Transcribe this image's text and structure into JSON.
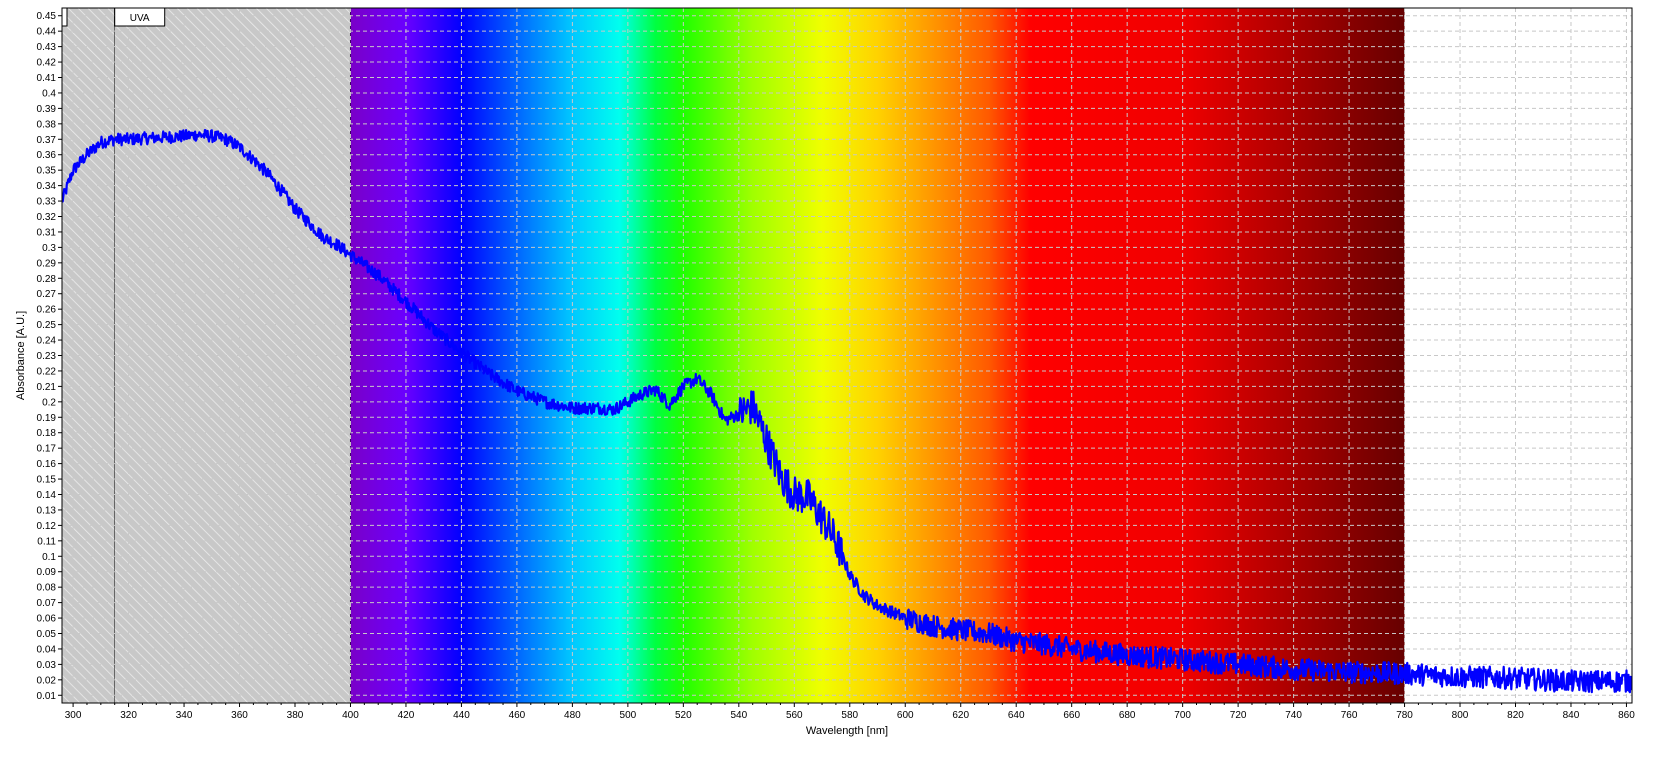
{
  "chart_data": {
    "type": "line",
    "xlabel": "Wavelength [nm]",
    "ylabel": "Absorbance [A.U.]",
    "xlim": [
      296,
      862
    ],
    "ylim": [
      0.005,
      0.455
    ],
    "grid": true,
    "x_ticks": [
      300,
      320,
      340,
      360,
      380,
      400,
      420,
      440,
      460,
      480,
      500,
      520,
      540,
      560,
      580,
      600,
      620,
      640,
      660,
      680,
      700,
      720,
      740,
      760,
      780,
      800,
      820,
      840,
      860
    ],
    "y_ticks": [
      0.01,
      0.02,
      0.03,
      0.04,
      0.05,
      0.06,
      0.07,
      0.08,
      0.09,
      0.1,
      0.11,
      0.12,
      0.13,
      0.14,
      0.15,
      0.16,
      0.17,
      0.18,
      0.19,
      0.2,
      0.21,
      0.22,
      0.23,
      0.24,
      0.25,
      0.26,
      0.27,
      0.28,
      0.29,
      0.3,
      0.31,
      0.32,
      0.33,
      0.34,
      0.35,
      0.36,
      0.37,
      0.38,
      0.39,
      0.4,
      0.41,
      0.42,
      0.43,
      0.44,
      0.45
    ],
    "regions": [
      {
        "name": "",
        "range": [
          296,
          315
        ],
        "fill": "hatched-gray"
      },
      {
        "name": "UVA",
        "range": [
          315,
          400
        ],
        "fill": "hatched-gray"
      },
      {
        "name": "",
        "range": [
          400,
          780
        ],
        "fill": "visible-spectrum"
      }
    ],
    "spectrum_stops": [
      {
        "nm": 400,
        "color": "#7a00c8"
      },
      {
        "nm": 420,
        "color": "#6a00ff"
      },
      {
        "nm": 440,
        "color": "#0000ff"
      },
      {
        "nm": 460,
        "color": "#0066ff"
      },
      {
        "nm": 480,
        "color": "#00c8ff"
      },
      {
        "nm": 497,
        "color": "#00ffee"
      },
      {
        "nm": 510,
        "color": "#00ff40"
      },
      {
        "nm": 520,
        "color": "#20ff00"
      },
      {
        "nm": 545,
        "color": "#a0ff00"
      },
      {
        "nm": 570,
        "color": "#f0ff00"
      },
      {
        "nm": 590,
        "color": "#ffd200"
      },
      {
        "nm": 610,
        "color": "#ff9600"
      },
      {
        "nm": 630,
        "color": "#ff5a00"
      },
      {
        "nm": 645,
        "color": "#ff0000"
      },
      {
        "nm": 700,
        "color": "#f00000"
      },
      {
        "nm": 740,
        "color": "#aa0000"
      },
      {
        "nm": 780,
        "color": "#660000"
      }
    ],
    "series": [
      {
        "name": "",
        "color": "#0000ff",
        "x": [
          296,
          300,
          305,
          310,
          315,
          320,
          330,
          340,
          345,
          350,
          355,
          360,
          365,
          370,
          375,
          380,
          385,
          390,
          395,
          400,
          410,
          420,
          430,
          440,
          450,
          460,
          470,
          480,
          490,
          495,
          500,
          505,
          510,
          515,
          520,
          525,
          530,
          535,
          540,
          545,
          550,
          555,
          560,
          565,
          570,
          575,
          580,
          585,
          590,
          600,
          610,
          620,
          630,
          640,
          650,
          660,
          680,
          700,
          720,
          740,
          760,
          780,
          800,
          820,
          840,
          862
        ],
        "y": [
          0.33,
          0.35,
          0.36,
          0.368,
          0.37,
          0.37,
          0.371,
          0.372,
          0.373,
          0.372,
          0.37,
          0.365,
          0.357,
          0.348,
          0.337,
          0.325,
          0.316,
          0.307,
          0.302,
          0.295,
          0.282,
          0.265,
          0.247,
          0.232,
          0.218,
          0.207,
          0.2,
          0.196,
          0.196,
          0.195,
          0.2,
          0.205,
          0.208,
          0.198,
          0.21,
          0.215,
          0.205,
          0.188,
          0.192,
          0.197,
          0.175,
          0.152,
          0.14,
          0.138,
          0.125,
          0.11,
          0.088,
          0.075,
          0.068,
          0.06,
          0.055,
          0.052,
          0.05,
          0.045,
          0.043,
          0.04,
          0.036,
          0.033,
          0.03,
          0.027,
          0.025,
          0.024,
          0.022,
          0.021,
          0.019,
          0.019
        ],
        "noise_amplitude": 0.004
      }
    ],
    "annotations": [
      {
        "text": "UVA",
        "x": 320
      }
    ]
  }
}
